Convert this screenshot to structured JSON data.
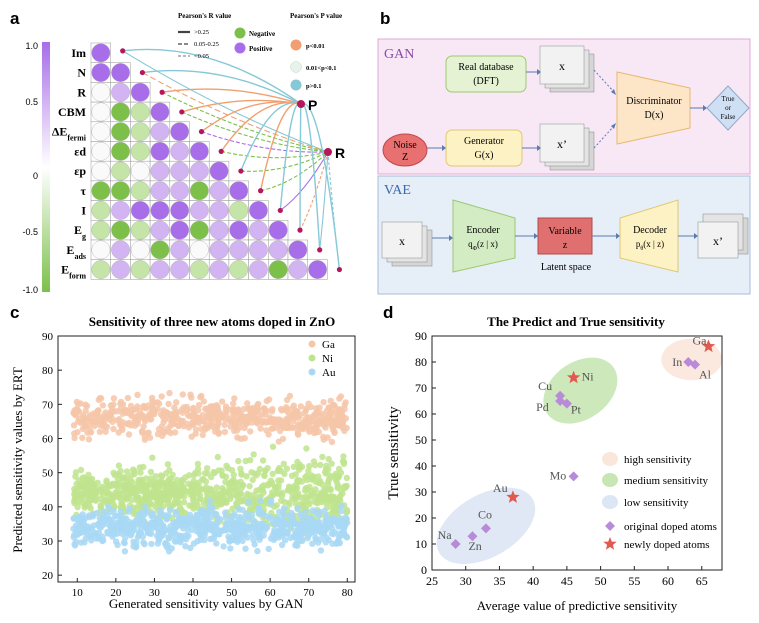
{
  "panel_labels": {
    "a": "a",
    "b": "b",
    "c": "c",
    "d": "d"
  },
  "colors": {
    "positive": "#a86de8",
    "negative": "#7cc04a",
    "p_lt_001": "#f0a070",
    "p_mid": "#e6f2ea",
    "p_gt_01": "#86c8d6",
    "node": "#b5175a",
    "ga": "#f6c6a8",
    "ni": "#bfe48e",
    "au": "#a8d8f4",
    "gan_bg": "#f8e8f6",
    "vae_bg": "#e6eef8",
    "star": "#e05a50",
    "diamond": "#b98ad8"
  },
  "panel_a": {
    "legend_r_title": "Pearson's R value",
    "legend_p_title": "Pearson's P value",
    "line_legend": [
      ">0.25",
      "0.05-0.25",
      "<0.05"
    ],
    "sign_legend": [
      "Negative",
      "Positive"
    ],
    "p_legend": [
      "p<0.01",
      "0.01<p<0.1",
      "p>0.1"
    ],
    "colorbar_ticks": [
      "1.0",
      "0.5",
      "0",
      "-0.5",
      "-1.0"
    ],
    "node_p": "P",
    "node_r": "R",
    "var_labels": [
      {
        "main": "Im",
        "sub": ""
      },
      {
        "main": "N",
        "sub": ""
      },
      {
        "main": "R",
        "sub": ""
      },
      {
        "main": "CBM",
        "sub": ""
      },
      {
        "main": "ΔE",
        "sub": "fermi"
      },
      {
        "main": "εd",
        "sub": ""
      },
      {
        "main": "εp",
        "sub": ""
      },
      {
        "main": "τ",
        "sub": ""
      },
      {
        "main": "I",
        "sub": ""
      },
      {
        "main": "E",
        "sub": "g"
      },
      {
        "main": "E",
        "sub": "ads"
      },
      {
        "main": "E",
        "sub": "form"
      }
    ],
    "matrix_colors": [
      [
        "P"
      ],
      [
        "P",
        "P"
      ],
      [
        "W",
        "LP",
        "P"
      ],
      [
        "W",
        "G",
        "LG",
        "P"
      ],
      [
        "W",
        "G",
        "LG",
        "LP",
        "P"
      ],
      [
        "W",
        "G",
        "LG",
        "P",
        "LP",
        "P"
      ],
      [
        "W",
        "LG",
        "W",
        "LP",
        "LP",
        "LP",
        "P"
      ],
      [
        "G",
        "G",
        "LG",
        "LP",
        "LP",
        "G",
        "LP",
        "P"
      ],
      [
        "LG",
        "LP",
        "P",
        "P",
        "P",
        "LP",
        "LP",
        "LG",
        "P"
      ],
      [
        "LG",
        "G",
        "LG",
        "LP",
        "P",
        "G",
        "LP",
        "P",
        "LP",
        "P"
      ],
      [
        "W",
        "LP",
        "W",
        "G",
        "LP",
        "W",
        "LP",
        "LP",
        "LP",
        "LP",
        "P"
      ],
      [
        "LG",
        "LP",
        "LG",
        "LP",
        "LP",
        "LG",
        "LP",
        "LG",
        "LP",
        "G",
        "LP",
        "P"
      ]
    ]
  },
  "panel_b": {
    "gan_title": "GAN",
    "vae_title": "VAE",
    "real_db": [
      "Real database",
      "(DFT)"
    ],
    "noise": [
      "Noise",
      "Z"
    ],
    "generator": [
      "Generator",
      "G(x)"
    ],
    "discriminator": [
      "Discriminator",
      "D(x)"
    ],
    "true_false": [
      "True",
      "or",
      "False"
    ],
    "x": "x",
    "x_prime": "x’",
    "encoder": [
      "Encoder",
      "q",
      "Φ",
      "(z | x)"
    ],
    "variable": [
      "Variable",
      "z"
    ],
    "latent": "Latent space",
    "decoder": [
      "Decoder",
      "p",
      "θ",
      "(x | z)"
    ]
  },
  "chart_data": [
    {
      "type": "scatter",
      "title": "Sensitivity of three new atoms doped in ZnO",
      "xlabel": "Generated sensitivity values by GAN",
      "ylabel": "Predicted sensitivity values by ERT",
      "xlim": [
        5,
        82
      ],
      "ylim": [
        18,
        90
      ],
      "xticks": [
        10,
        20,
        30,
        40,
        50,
        60,
        70,
        80
      ],
      "yticks": [
        20,
        30,
        40,
        50,
        60,
        70,
        80,
        90
      ],
      "legend_position": "top-right",
      "series": [
        {
          "name": "Ga",
          "color": "#f6c6a8",
          "x_range": [
            9,
            80
          ],
          "y_center": 66,
          "y_spread": 5
        },
        {
          "name": "Ni",
          "color": "#bfe48e",
          "x_range": [
            9,
            80
          ],
          "y_center": 44,
          "y_spread": 7
        },
        {
          "name": "Au",
          "color": "#a8d8f4",
          "x_range": [
            9,
            80
          ],
          "y_center": 34,
          "y_spread": 5
        }
      ]
    },
    {
      "type": "scatter",
      "title": "The Predict and True sensitivity",
      "xlabel": "Average value of predictive sensitivity",
      "ylabel": "True sensitivity",
      "xlim": [
        25,
        68
      ],
      "ylim": [
        0,
        90
      ],
      "xticks": [
        25,
        30,
        35,
        40,
        45,
        50,
        55,
        60,
        65
      ],
      "yticks": [
        0,
        10,
        20,
        30,
        40,
        50,
        60,
        70,
        80,
        90
      ],
      "legend": [
        {
          "label": "high sensitivity",
          "kind": "ellipse",
          "color": "#fbe6dc"
        },
        {
          "label": "medium sensitivity",
          "kind": "ellipse",
          "color": "#c8e6b4"
        },
        {
          "label": "low sensitivity",
          "kind": "ellipse",
          "color": "#dde6f4"
        },
        {
          "label": "original doped atoms",
          "kind": "diamond",
          "color": "#b98ad8"
        },
        {
          "label": "newly doped atoms",
          "kind": "star",
          "color": "#e05a50"
        }
      ],
      "regions": [
        {
          "name": "high",
          "cx": 63.5,
          "cy": 81,
          "rx": 4.5,
          "ry": 8,
          "color": "#fbe6dc"
        },
        {
          "name": "medium",
          "cx": 47,
          "cy": 69,
          "rx": 6,
          "ry": 11,
          "color": "#c8e6b4"
        },
        {
          "name": "low",
          "cx": 33,
          "cy": 17,
          "rx": 8,
          "ry": 12,
          "color": "#dde6f4"
        }
      ],
      "points": [
        {
          "label": "Ga",
          "x": 66,
          "y": 86,
          "kind": "star"
        },
        {
          "label": "In",
          "x": 63,
          "y": 80,
          "kind": "diamond"
        },
        {
          "label": "Al",
          "x": 64,
          "y": 79,
          "kind": "diamond"
        },
        {
          "label": "Ni",
          "x": 46,
          "y": 74,
          "kind": "star"
        },
        {
          "label": "Cu",
          "x": 44,
          "y": 67,
          "kind": "diamond"
        },
        {
          "label": "Pd",
          "x": 44,
          "y": 65,
          "kind": "diamond"
        },
        {
          "label": "Pt",
          "x": 45,
          "y": 64,
          "kind": "diamond"
        },
        {
          "label": "Mo",
          "x": 46,
          "y": 36,
          "kind": "diamond"
        },
        {
          "label": "Au",
          "x": 37,
          "y": 28,
          "kind": "star"
        },
        {
          "label": "Co",
          "x": 33,
          "y": 16,
          "kind": "diamond"
        },
        {
          "label": "Zn",
          "x": 31,
          "y": 13,
          "kind": "diamond"
        },
        {
          "label": "Na",
          "x": 28.5,
          "y": 10,
          "kind": "diamond"
        }
      ]
    }
  ]
}
